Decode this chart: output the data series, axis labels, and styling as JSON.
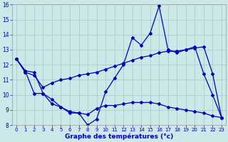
{
  "xlabel": "Graphe des températures (°c)",
  "xlim": [
    -0.5,
    23.5
  ],
  "ylim": [
    8,
    16
  ],
  "yticks": [
    8,
    9,
    10,
    11,
    12,
    13,
    14,
    15,
    16
  ],
  "xticks": [
    0,
    1,
    2,
    3,
    4,
    5,
    6,
    7,
    8,
    9,
    10,
    11,
    12,
    13,
    14,
    15,
    16,
    17,
    18,
    19,
    20,
    21,
    22,
    23
  ],
  "background_color": "#cce8e8",
  "line_color": "#0000bb",
  "grid_color": "#aacccc",
  "curve1_y": [
    12.4,
    11.6,
    11.5,
    10.1,
    9.7,
    9.2,
    8.8,
    8.8,
    8.0,
    8.4,
    10.2,
    11.1,
    12.0,
    13.8,
    13.3,
    14.1,
    15.9,
    13.0,
    12.8,
    13.0,
    13.2,
    11.4,
    10.0,
    8.5
  ],
  "curve2_y": [
    12.4,
    11.5,
    11.3,
    10.5,
    10.8,
    11.0,
    11.1,
    11.3,
    11.4,
    11.5,
    11.7,
    11.9,
    12.1,
    12.3,
    12.5,
    12.6,
    12.8,
    12.9,
    12.9,
    13.0,
    13.1,
    13.2,
    11.4,
    8.5
  ],
  "curve3_y": [
    12.4,
    11.6,
    10.1,
    10.1,
    9.4,
    9.2,
    8.9,
    8.8,
    8.7,
    9.1,
    9.3,
    9.3,
    9.4,
    9.5,
    9.5,
    9.5,
    9.4,
    9.2,
    9.1,
    9.0,
    8.9,
    8.8,
    8.6,
    8.5
  ]
}
